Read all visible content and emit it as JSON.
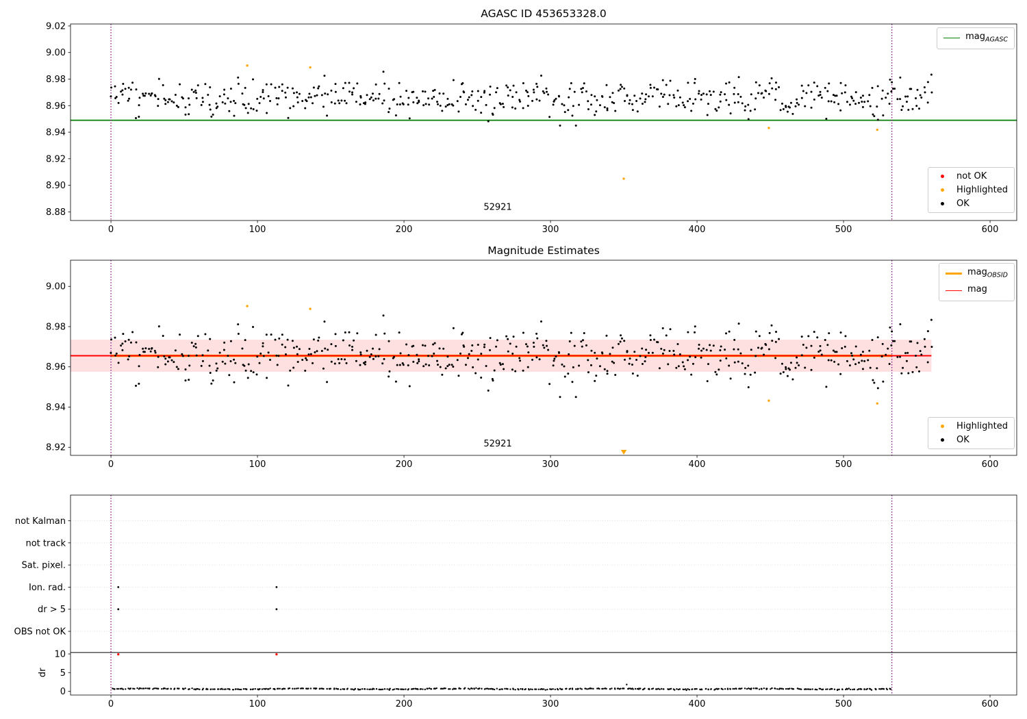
{
  "figure": {
    "background": "#ffffff"
  },
  "chart_data": [
    {
      "type": "scatter",
      "title": "AGASC ID 453653328.0",
      "xlim": [
        -27.6,
        618.2
      ],
      "ylim": [
        8.8735,
        9.0215
      ],
      "xticks": [
        0,
        100,
        200,
        300,
        400,
        500,
        600
      ],
      "yticks": [
        8.88,
        8.9,
        8.92,
        8.94,
        8.96,
        8.98,
        9.0,
        9.02
      ],
      "ytick_labels": [
        "8.88",
        "8.90",
        "8.92",
        "8.94",
        "8.96",
        "8.98",
        "9.00",
        "9.02"
      ],
      "agasc_line": {
        "y": 8.949,
        "color": "#007f00"
      },
      "vlines": {
        "x": [
          0,
          533
        ],
        "color": "#800080"
      },
      "annotation": {
        "x": 264,
        "y": 8.8815,
        "text": "52921"
      },
      "ok_points": {
        "color": "#000000",
        "n": 550,
        "x_min": 0,
        "x_max": 560,
        "y_mean": 8.966,
        "y_std": 0.0065,
        "y_clip": [
          8.945,
          8.9855
        ],
        "wave": {
          "amp": 0.0035,
          "freq": 0.24
        },
        "seed": 20177
      },
      "highlighted_points": {
        "color": "#ffa500",
        "points": [
          [
            93,
            8.9902
          ],
          [
            136,
            8.9888
          ],
          [
            350,
            8.905
          ],
          [
            449,
            8.9432
          ],
          [
            523,
            8.9418
          ]
        ]
      },
      "legend_line": {
        "main": "mag",
        "sub": "AGASC"
      },
      "legend_items": [
        {
          "label": "not OK",
          "color": "#ff0000"
        },
        {
          "label": "Highlighted",
          "color": "#ffa500"
        },
        {
          "label": "OK",
          "color": "#000000"
        }
      ]
    },
    {
      "type": "scatter",
      "title": "Magnitude Estimates",
      "xlim": [
        -27.6,
        618.2
      ],
      "ylim": [
        8.916,
        9.013
      ],
      "xticks": [
        0,
        100,
        200,
        300,
        400,
        500,
        600
      ],
      "yticks": [
        8.92,
        8.94,
        8.96,
        8.98,
        9.0
      ],
      "ytick_labels": [
        "8.92",
        "8.94",
        "8.96",
        "8.98",
        "9.00"
      ],
      "mag_line": {
        "y": 8.9655,
        "color": "#ff0000",
        "x_range": [
          -27.6,
          560
        ]
      },
      "mag_band": {
        "y0": 8.9575,
        "y1": 8.9735,
        "color": "#ff0000",
        "opacity": 0.12
      },
      "obsid_line": {
        "y": 8.9655,
        "x0": 0,
        "x1": 533,
        "color": "#ffa500"
      },
      "vlines": {
        "x": [
          0,
          533
        ],
        "color": "#800080"
      },
      "annotation": {
        "x": 264,
        "y": 8.9205,
        "text": "52921"
      },
      "ok_points": {
        "color": "#000000",
        "n": 550,
        "x_min": 0,
        "x_max": 560,
        "y_mean": 8.966,
        "y_std": 0.0065,
        "y_clip": [
          8.945,
          8.9855
        ],
        "wave": {
          "amp": 0.0035,
          "freq": 0.24
        },
        "seed": 20177
      },
      "highlighted_points": {
        "color": "#ffa500",
        "points": [
          [
            93,
            8.9902
          ],
          [
            136,
            8.9888
          ],
          [
            449,
            8.9432
          ],
          [
            523,
            8.9418
          ]
        ]
      },
      "clipped_marker": {
        "x": 350,
        "color": "#ffa500"
      },
      "legend_lines": [
        {
          "main": "mag",
          "sub": "OBSID",
          "color": "#ffa500",
          "thick": true
        },
        {
          "main": "mag",
          "sub": "",
          "color": "#ff0000",
          "thick": false
        }
      ],
      "legend_items": [
        {
          "label": "Highlighted",
          "color": "#ffa500"
        },
        {
          "label": "OK",
          "color": "#000000"
        }
      ]
    },
    {
      "type": "flags",
      "categories": [
        "not Kalman",
        "not track",
        "Sat. pixel.",
        "Ion. rad.",
        "dr > 5",
        "OBS not OK"
      ],
      "xlim": [
        -27.6,
        618.2
      ],
      "xticks": [
        0,
        100,
        200,
        300,
        400,
        500,
        600
      ],
      "dr_axis": {
        "label": "dr",
        "ticks": [
          0,
          5,
          10
        ]
      },
      "dr_line": {
        "y": 10.4,
        "color": "#000000"
      },
      "flag_points": [
        {
          "category": "Ion. rad.",
          "x": [
            5,
            113
          ]
        },
        {
          "category": "dr > 5",
          "x": [
            5,
            113
          ]
        }
      ],
      "not_ok_points": {
        "color": "#ff0000",
        "points": [
          [
            5,
            9.9
          ],
          [
            113,
            9.9
          ]
        ]
      },
      "dr_points": {
        "color": "#000000",
        "n": 530,
        "x_min": 1,
        "x_max": 533,
        "y_mean": 0.62,
        "y_std": 0.08,
        "y_clip": [
          0.3,
          1.1
        ],
        "wave": {
          "amp": 0.1,
          "freq": 0.06
        },
        "seed": 4242
      },
      "dr_extra_points": [
        [
          352,
          1.8
        ]
      ],
      "vlines": {
        "x": [
          0,
          533
        ],
        "color": "#800080"
      },
      "grid_color": "#d9d9d9"
    }
  ]
}
